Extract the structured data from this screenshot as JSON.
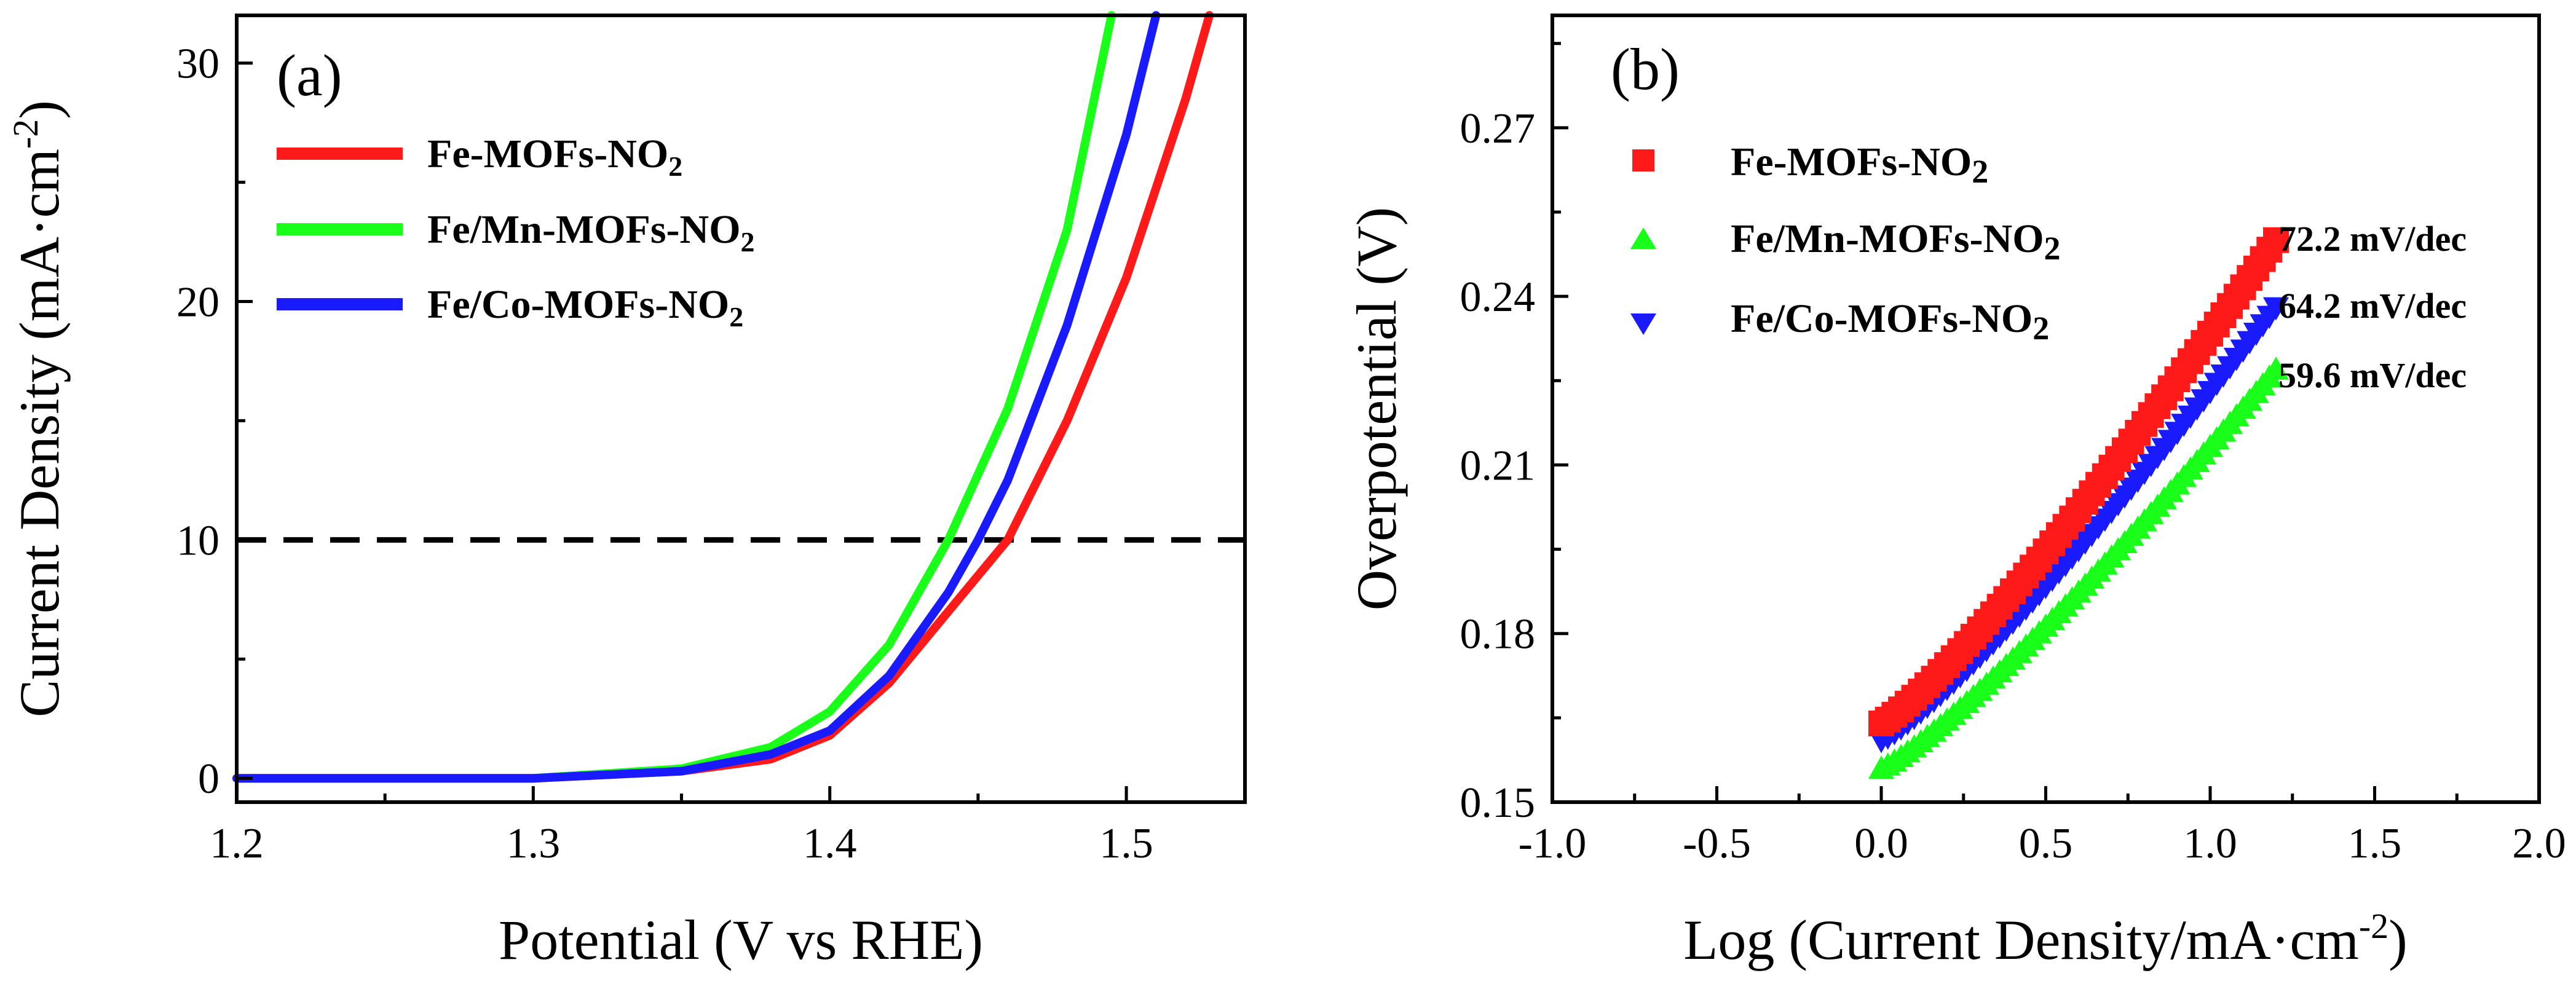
{
  "chart_data": [
    {
      "type": "line",
      "panel_label": "(a)",
      "xlabel": "Potential (V vs RHE)",
      "ylabel": "Current Density (mA·cm",
      "ylabel_sup": "-2",
      "ylabel_close": ")",
      "xlim": [
        1.2,
        1.54
      ],
      "ylim": [
        -1,
        32
      ],
      "x_ticks": [
        1.2,
        1.3,
        1.4,
        1.5
      ],
      "x_tick_labels": [
        "1.2",
        "1.3",
        "1.4",
        "1.5"
      ],
      "y_ticks": [
        0,
        10,
        20,
        30
      ],
      "y_tick_labels": [
        "0",
        "10",
        "20",
        "30"
      ],
      "reference_line": {
        "y": 10,
        "style": "dashed",
        "color": "#000000"
      },
      "series": [
        {
          "name": "Fe-MOFs-NO",
          "sub": "2",
          "color": "#ff1a1a",
          "x": [
            1.2,
            1.3,
            1.35,
            1.38,
            1.4,
            1.42,
            1.44,
            1.46,
            1.48,
            1.5,
            1.52,
            1.528
          ],
          "y": [
            0,
            0,
            0.3,
            0.8,
            1.8,
            4.0,
            7.0,
            10.0,
            15.0,
            21.0,
            28.5,
            32.0
          ]
        },
        {
          "name": "Fe/Mn-MOFs-NO",
          "sub": "2",
          "color": "#1aff1a",
          "x": [
            1.2,
            1.3,
            1.35,
            1.38,
            1.4,
            1.42,
            1.44,
            1.46,
            1.48,
            1.495
          ],
          "y": [
            0,
            0,
            0.4,
            1.3,
            2.8,
            5.6,
            10.0,
            15.5,
            23.0,
            32.0
          ]
        },
        {
          "name": "Fe/Co-MOFs-NO",
          "sub": "2",
          "color": "#1a1aff",
          "x": [
            1.2,
            1.3,
            1.35,
            1.38,
            1.4,
            1.42,
            1.44,
            1.45,
            1.46,
            1.48,
            1.5,
            1.51
          ],
          "y": [
            0,
            0,
            0.3,
            1.0,
            2.0,
            4.3,
            7.8,
            10.0,
            12.5,
            19.0,
            27.0,
            32.0
          ]
        }
      ]
    },
    {
      "type": "scatter",
      "panel_label": "(b)",
      "xlabel": "Log (Current Density/mA·cm",
      "xlabel_sup": "-2",
      "xlabel_close": ")",
      "ylabel": "Overpotential (V)",
      "xlim": [
        -1.0,
        2.0
      ],
      "ylim": [
        0.15,
        0.29
      ],
      "x_ticks": [
        -1.0,
        -0.5,
        0.0,
        0.5,
        1.0,
        1.5,
        2.0
      ],
      "x_tick_labels": [
        "-1.0",
        "-0.5",
        "0.0",
        "0.5",
        "1.0",
        "1.5",
        "2.0"
      ],
      "y_ticks": [
        0.15,
        0.18,
        0.21,
        0.24,
        0.27
      ],
      "y_tick_labels": [
        "0.15",
        "0.18",
        "0.21",
        "0.24",
        "0.27"
      ],
      "series": [
        {
          "name": "Fe-MOFs-NO",
          "sub": "2",
          "color": "#ff1a1a",
          "marker": "square",
          "x_start": 0.0,
          "x_end": 1.2,
          "y_start": 0.164,
          "y_end": 0.25,
          "tafel_slope": "72.2 mV/dec"
        },
        {
          "name": "Fe/Mn-MOFs-NO",
          "sub": "2",
          "color": "#1aff1a",
          "marker": "triangle-up",
          "x_start": 0.0,
          "x_end": 1.2,
          "y_start": 0.156,
          "y_end": 0.227,
          "tafel_slope": "59.6 mV/dec"
        },
        {
          "name": "Fe/Co-MOFs-NO",
          "sub": "2",
          "color": "#1a1aff",
          "marker": "triangle-down",
          "x_start": 0.0,
          "x_end": 1.2,
          "y_start": 0.161,
          "y_end": 0.238,
          "tafel_slope": "64.2 mV/dec"
        }
      ]
    }
  ]
}
